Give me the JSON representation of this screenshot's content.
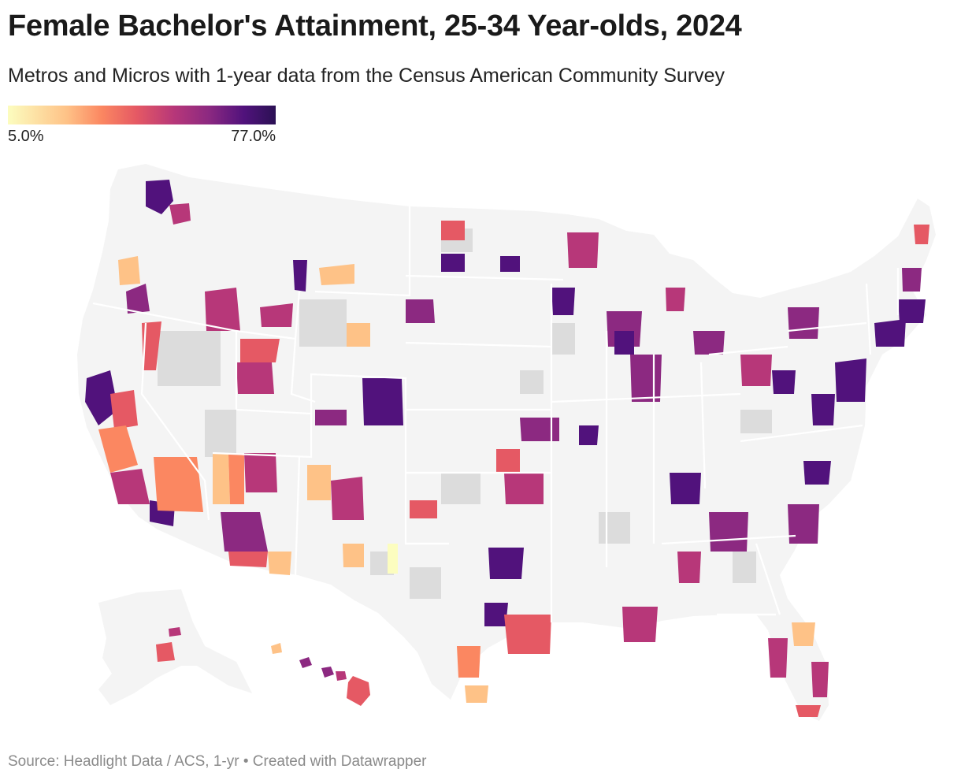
{
  "title": "Female Bachelor's Attainment, 25-34 Year-olds, 2024",
  "subtitle": "Metros and Micros with 1-year data from the Census American Community Survey",
  "legend": {
    "min_label": "5.0%",
    "max_label": "77.0%"
  },
  "colors": {
    "scale": [
      "#fcfdbf",
      "#fec287",
      "#fb8761",
      "#e55964",
      "#b73779",
      "#8c2981",
      "#51127c",
      "#2b1154"
    ],
    "land": "#f4f4f4",
    "no_data": "#dcdcdc",
    "state_border": "#ffffff"
  },
  "footer": {
    "source": "Source: Headlight Data / ACS, 1-yr • Created with Datawrapper"
  }
}
